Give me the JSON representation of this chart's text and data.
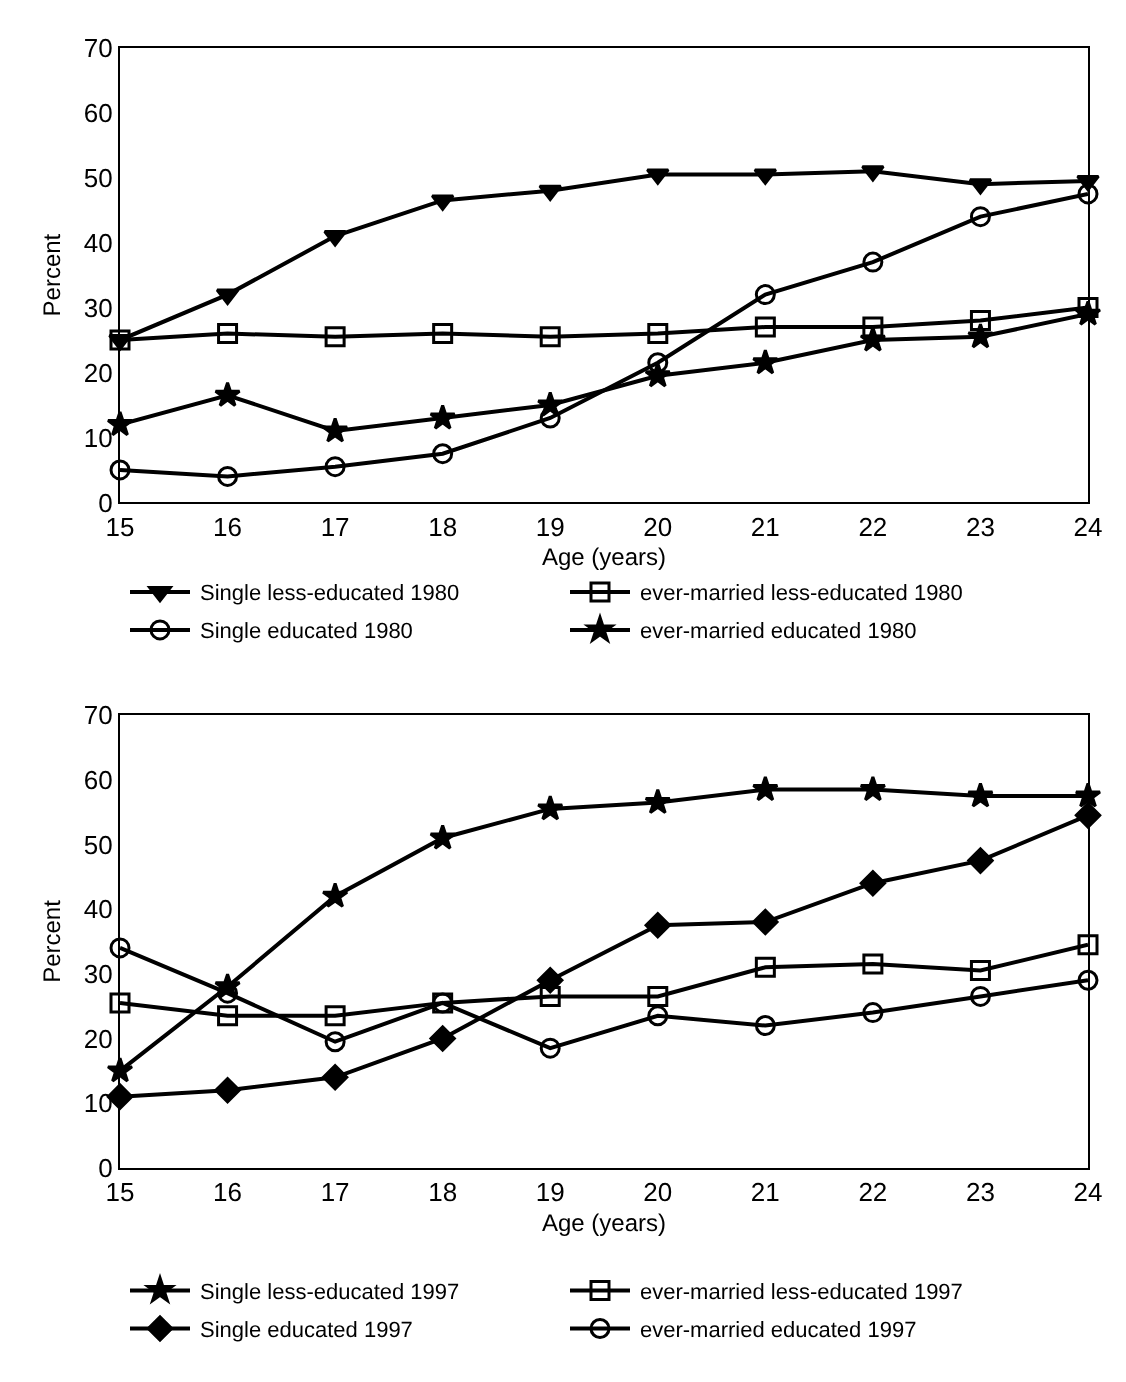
{
  "chart_data": [
    {
      "type": "line",
      "xlabel": "Age (years)",
      "ylabel": "Percent",
      "x": [
        15,
        16,
        17,
        18,
        19,
        20,
        21,
        22,
        23,
        24
      ],
      "xlim": [
        15,
        24
      ],
      "xticks": [
        15,
        16,
        17,
        18,
        19,
        20,
        21,
        22,
        23,
        24
      ],
      "ylim": [
        0,
        70
      ],
      "yticks": [
        0,
        10,
        20,
        30,
        40,
        50,
        60,
        70
      ],
      "legend": "bottom",
      "line_style": "solid",
      "series": [
        {
          "name": "Single less-educated 1980",
          "color": "#000000",
          "marker": "triangle",
          "values": [
            25,
            32,
            41,
            46.5,
            48,
            50.5,
            50.5,
            51,
            49,
            49.5
          ]
        },
        {
          "name": "ever-married less-educated 1980",
          "color": "#000000",
          "marker": "square",
          "values": [
            25,
            26,
            25.5,
            26,
            25.5,
            26,
            27,
            27,
            28,
            30
          ]
        },
        {
          "name": "Single educated 1980",
          "color": "#000000",
          "marker": "circle",
          "values": [
            5,
            4,
            5.5,
            7.5,
            13,
            21.5,
            32,
            37,
            44,
            47.5
          ]
        },
        {
          "name": "ever-married educated 1980",
          "color": "#000000",
          "marker": "star",
          "values": [
            12,
            16.5,
            11,
            13,
            15,
            19.5,
            21.5,
            25,
            25.5,
            29
          ]
        }
      ]
    },
    {
      "type": "line",
      "xlabel": "Age (years)",
      "ylabel": "Percent",
      "x": [
        15,
        16,
        17,
        18,
        19,
        20,
        21,
        22,
        23,
        24
      ],
      "xlim": [
        15,
        24
      ],
      "xticks": [
        15,
        16,
        17,
        18,
        19,
        20,
        21,
        22,
        23,
        24
      ],
      "ylim": [
        0,
        70
      ],
      "yticks": [
        0,
        10,
        20,
        30,
        40,
        50,
        60,
        70
      ],
      "legend": "bottom",
      "line_style": "solid",
      "series": [
        {
          "name": "Single less-educated 1997",
          "color": "#000000",
          "marker": "star",
          "values": [
            15,
            28,
            42,
            51,
            55.5,
            56.5,
            58.5,
            58.5,
            57.5,
            57.5
          ]
        },
        {
          "name": "ever-married less-educated 1997",
          "color": "#000000",
          "marker": "square",
          "values": [
            25.5,
            23.5,
            23.5,
            25.5,
            26.5,
            26.5,
            31,
            31.5,
            30.5,
            34.5
          ]
        },
        {
          "name": "Single educated 1997",
          "color": "#000000",
          "marker": "diamond",
          "values": [
            11,
            12,
            14,
            20,
            29,
            37.5,
            38,
            44,
            47.5,
            54.5
          ]
        },
        {
          "name": "ever-married educated 1997",
          "color": "#000000",
          "marker": "circle",
          "values": [
            34,
            27,
            19.5,
            25.5,
            18.5,
            23.5,
            22,
            24,
            26.5,
            29
          ]
        }
      ]
    }
  ]
}
